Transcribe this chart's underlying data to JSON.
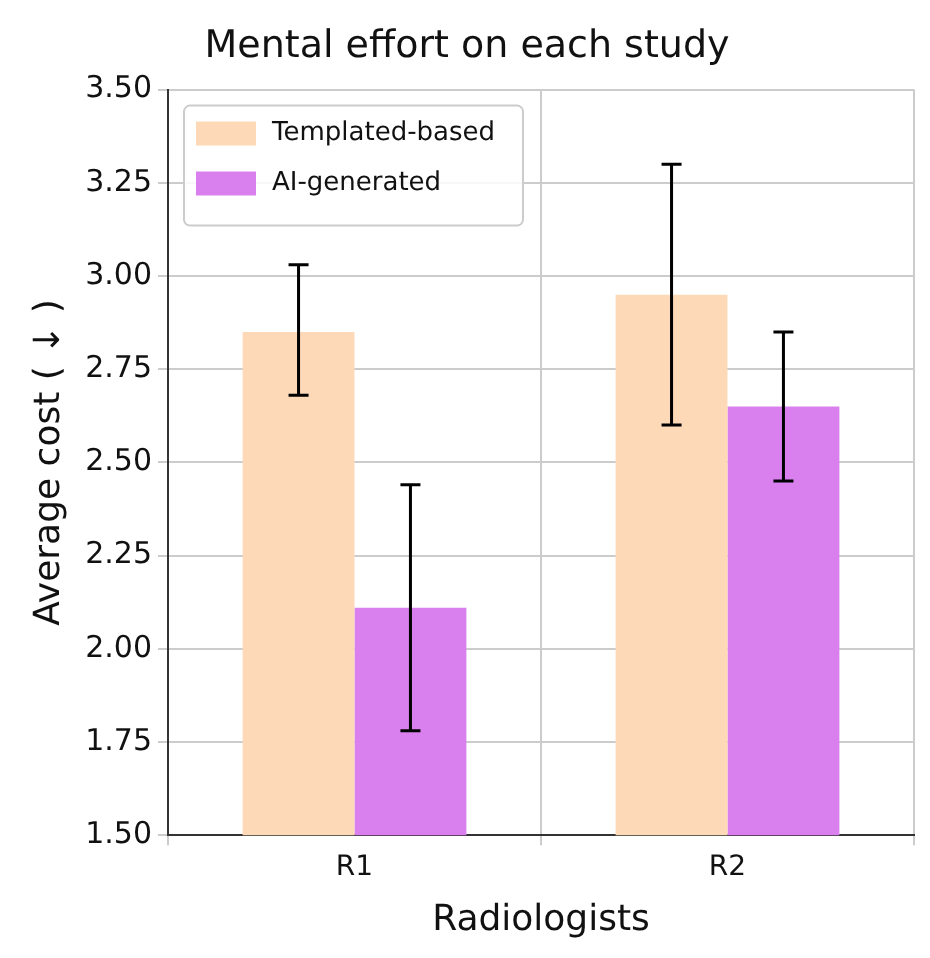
{
  "chart_data": {
    "type": "bar",
    "title": "Mental effort on each study",
    "xlabel": "Radiologists",
    "ylabel": "Average cost ( ↓ )",
    "categories": [
      "R1",
      "R2"
    ],
    "series": [
      {
        "name": "Templated-based",
        "color": "#fdd9b8",
        "values": [
          2.85,
          2.95
        ],
        "errors": [
          [
            2.68,
            3.03
          ],
          [
            2.6,
            3.3
          ]
        ]
      },
      {
        "name": "AI-generated",
        "color": "#da80ee",
        "values": [
          2.11,
          2.65
        ],
        "errors": [
          [
            1.78,
            2.44
          ],
          [
            2.45,
            2.85
          ]
        ]
      }
    ],
    "ylim": [
      1.5,
      3.5
    ],
    "yticks": [
      {
        "value": 1.5,
        "label": "1.50"
      },
      {
        "value": 1.75,
        "label": "1.75"
      },
      {
        "value": 2,
        "label": "2.00"
      },
      {
        "value": 2.25,
        "label": "2.25"
      },
      {
        "value": 2.5,
        "label": "2.50"
      },
      {
        "value": 2.75,
        "label": "2.75"
      },
      {
        "value": 3,
        "label": "3.00"
      },
      {
        "value": 3.25,
        "label": "3.25"
      },
      {
        "value": 3.5,
        "label": "3.50"
      }
    ],
    "grid": true,
    "legend": "top left"
  }
}
